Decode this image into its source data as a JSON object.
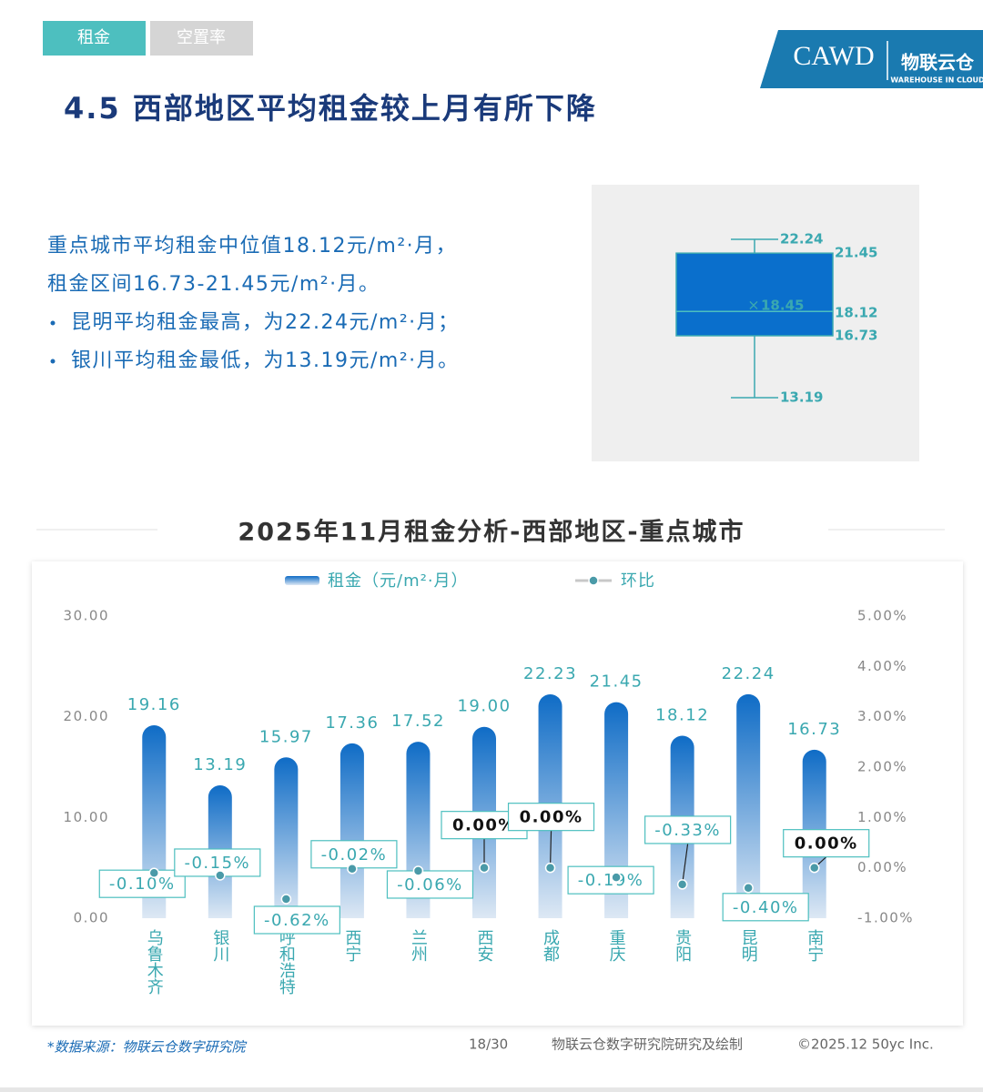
{
  "header": {
    "tabs": [
      "租金",
      "空置率"
    ],
    "title": "4.5 西部地区平均租金较上月有所下降",
    "logo": {
      "cawd": "CAWD",
      "brand": "物联云仓",
      "brand_en": "WAREHOUSE IN CLOUD"
    }
  },
  "summary": [
    "重点城市平均租金中位值18.12元/m²·月，",
    "租金区间16.73-21.45元/m²·月。",
    "昆明平均租金最高，为22.24元/m²·月；",
    "银川平均租金最低，为13.19元/m²·月。"
  ],
  "chart_data": [
    {
      "type": "box",
      "color": "#0a6fcc",
      "max": 22.24,
      "q3": 21.45,
      "mean": 18.45,
      "median": 18.12,
      "q1": 16.73,
      "min": 13.19
    },
    {
      "type": "bar",
      "title": "2025年11月租金分析-西部地区-重点城市",
      "categories": [
        "乌鲁木齐",
        "银川",
        "呼和浩特",
        "西宁",
        "兰州",
        "西安",
        "成都",
        "重庆",
        "贵阳",
        "昆明",
        "南宁"
      ],
      "series": [
        {
          "name": "租金（元/m²·月）",
          "type": "bar",
          "color": "#0f6cc6",
          "values": [
            19.16,
            13.19,
            15.97,
            17.36,
            17.52,
            19.0,
            22.23,
            21.45,
            18.12,
            22.24,
            16.73
          ],
          "value_labels": [
            "19.16",
            "13.19",
            "15.97",
            "17.36",
            "17.52",
            "19.00",
            "22.23",
            "21.45",
            "18.12",
            "22.24",
            "16.73"
          ]
        },
        {
          "name": "环比",
          "type": "line",
          "axis": "y2",
          "color": "#c8c8c8",
          "values": [
            -0.1,
            -0.15,
            -0.62,
            -0.02,
            -0.06,
            0.0,
            0.0,
            -0.19,
            -0.33,
            -0.4,
            0.0
          ],
          "value_labels": [
            "-0.10%",
            "-0.15%",
            "-0.62%",
            "-0.02%",
            "-0.06%",
            "0.00%",
            "0.00%",
            "-0.19%",
            "-0.33%",
            "-0.40%",
            "0.00%"
          ]
        }
      ],
      "ylim": [
        0,
        30
      ],
      "yticks": [
        {
          "value": 0,
          "label": "0.00"
        },
        {
          "value": 10,
          "label": "10.00"
        },
        {
          "value": 20,
          "label": "20.00"
        },
        {
          "value": 30,
          "label": "30.00"
        }
      ],
      "y2lim": [
        -1,
        5
      ],
      "y2ticks": [
        {
          "value": -1,
          "label": "-1.00%"
        },
        {
          "value": 0,
          "label": "0.00%"
        },
        {
          "value": 1,
          "label": "1.00%"
        },
        {
          "value": 2,
          "label": "2.00%"
        },
        {
          "value": 3,
          "label": "3.00%"
        },
        {
          "value": 4,
          "label": "4.00%"
        },
        {
          "value": 5,
          "label": "5.00%"
        }
      ],
      "grid": false
    }
  ],
  "footer": {
    "source": "*数据来源：物联云仓数字研究院",
    "page": "18/30",
    "credit": "物联云仓数字研究院研究及绘制",
    "copyright": "©2025.12 50yc Inc."
  }
}
